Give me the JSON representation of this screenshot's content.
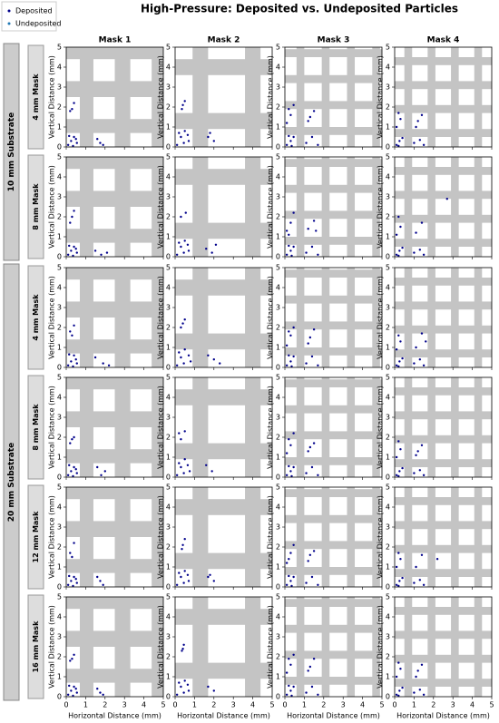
{
  "title": "High-Pressure: Deposited vs. Undeposited Particles",
  "legend": [
    {
      "name": "Deposited",
      "color": "#00008b"
    },
    {
      "name": "Undeposited",
      "color": "#1f77b4"
    }
  ],
  "columns": [
    "Mask 1",
    "Mask 2",
    "Mask 3",
    "Mask 4"
  ],
  "substrates": [
    {
      "label": "10 mm Substrate",
      "rows": [
        "4 mm Mask",
        "8 mm Mask"
      ]
    },
    {
      "label": "20 mm Substrate",
      "rows": [
        "4 mm Mask",
        "8 mm Mask",
        "12 mm Mask",
        "16 mm Mask"
      ]
    }
  ],
  "xlabel": "Horizontal Distance (mm)",
  "ylabel": "Vertical Distance (mm)",
  "xlim": [
    0,
    5
  ],
  "ylim": [
    0,
    5
  ],
  "xticks": [
    0,
    1,
    2,
    3,
    4,
    5
  ],
  "yticks": [
    0,
    1,
    2,
    3,
    4,
    5
  ],
  "masks": [
    {
      "bands": [
        [
          0.7,
          1.4
        ],
        [
          2.5,
          3.3
        ],
        [
          4.4,
          5
        ]
      ]
    },
    {
      "bands": [
        [
          0.9,
          1.7
        ],
        [
          3.6,
          4.4
        ]
      ]
    },
    {
      "bands": [
        [
          0.6,
          1.0
        ],
        [
          1.9,
          2.3
        ],
        [
          3.2,
          3.6
        ],
        [
          4.5,
          4.9
        ]
      ]
    },
    {
      "bands": [
        [
          0.5,
          0.9
        ],
        [
          1.7,
          2.1
        ],
        [
          2.9,
          3.3
        ],
        [
          4.1,
          4.5
        ]
      ]
    }
  ],
  "chart_data": [
    {
      "type": "scatter",
      "x": [
        0.1,
        0.25,
        0.4,
        0.55,
        0.15,
        0.35,
        0.5,
        0.2,
        0.4,
        0.3,
        1.6,
        1.9,
        1.75
      ],
      "y": [
        0.1,
        0.3,
        0.5,
        0.2,
        0.55,
        0.05,
        0.4,
        1.8,
        2.2,
        1.9,
        0.4,
        0.1,
        0.2
      ]
    },
    {
      "type": "scatter",
      "x": [
        0.1,
        0.3,
        0.5,
        0.7,
        0.2,
        0.45,
        0.65,
        0.35,
        0.5,
        0.4,
        1.7,
        2.0,
        1.8
      ],
      "y": [
        0.1,
        0.5,
        0.8,
        0.3,
        0.7,
        0.2,
        0.6,
        1.9,
        2.3,
        2.1,
        0.5,
        0.3,
        0.7
      ]
    },
    {
      "type": "scatter",
      "x": [
        0.1,
        0.3,
        0.45,
        0.2,
        0.35,
        0.1,
        0.3,
        0.45,
        0.2,
        1.1,
        1.4,
        1.7,
        1.2,
        1.5,
        1.3
      ],
      "y": [
        0.1,
        0.3,
        0.5,
        0.55,
        0.05,
        1.2,
        1.6,
        2.1,
        1.9,
        0.2,
        0.5,
        0.1,
        1.3,
        1.8,
        1.5
      ]
    },
    {
      "type": "scatter",
      "x": [
        0.1,
        0.25,
        0.4,
        0.2,
        0.1,
        0.3,
        0.2,
        1.0,
        1.3,
        1.5,
        1.1,
        1.4,
        1.2
      ],
      "y": [
        0.1,
        0.3,
        0.45,
        0.05,
        1.0,
        1.4,
        1.7,
        0.2,
        0.35,
        0.1,
        1.0,
        1.6,
        1.3
      ]
    },
    {
      "type": "scatter",
      "x": [
        0.1,
        0.25,
        0.4,
        0.55,
        0.15,
        0.35,
        0.5,
        0.2,
        0.4,
        0.3,
        1.5,
        1.8,
        2.1
      ],
      "y": [
        0.1,
        0.3,
        0.5,
        0.2,
        0.55,
        0.05,
        0.4,
        1.7,
        2.3,
        2.0,
        0.3,
        0.1,
        0.2
      ]
    },
    {
      "type": "scatter",
      "x": [
        0.1,
        0.3,
        0.5,
        0.7,
        0.2,
        0.45,
        0.65,
        0.3,
        0.55,
        1.6,
        1.9,
        2.1
      ],
      "y": [
        0.1,
        0.5,
        0.8,
        0.3,
        0.7,
        0.2,
        0.6,
        2.0,
        2.2,
        0.4,
        0.2,
        0.6
      ]
    },
    {
      "type": "scatter",
      "x": [
        0.1,
        0.3,
        0.45,
        0.2,
        0.35,
        0.1,
        0.3,
        0.45,
        0.2,
        1.1,
        1.4,
        1.7,
        1.2,
        1.5,
        1.6
      ],
      "y": [
        0.1,
        0.3,
        0.5,
        0.55,
        0.05,
        1.3,
        1.7,
        2.2,
        1.1,
        0.2,
        0.5,
        0.1,
        1.4,
        1.8,
        1.3
      ]
    },
    {
      "type": "scatter",
      "x": [
        0.1,
        0.25,
        0.4,
        0.2,
        0.1,
        0.3,
        0.2,
        1.0,
        1.3,
        1.5,
        1.1,
        1.4,
        2.7
      ],
      "y": [
        0.1,
        0.3,
        0.45,
        0.05,
        1.1,
        1.5,
        2.0,
        0.2,
        0.35,
        0.1,
        1.2,
        1.7,
        2.9
      ]
    },
    {
      "type": "scatter",
      "x": [
        0.1,
        0.25,
        0.4,
        0.55,
        0.15,
        0.35,
        0.5,
        0.2,
        0.4,
        0.3,
        1.5,
        1.9,
        2.2
      ],
      "y": [
        0.1,
        0.3,
        0.6,
        0.2,
        0.65,
        0.05,
        0.4,
        1.8,
        2.1,
        1.6,
        0.5,
        0.2,
        0.1
      ]
    },
    {
      "type": "scatter",
      "x": [
        0.1,
        0.3,
        0.5,
        0.8,
        0.2,
        0.45,
        0.7,
        0.3,
        0.5,
        0.4,
        1.7,
        2.0,
        2.3
      ],
      "y": [
        0.1,
        0.5,
        0.9,
        0.3,
        0.75,
        0.2,
        0.6,
        2.0,
        2.4,
        2.2,
        0.6,
        0.4,
        0.2
      ]
    },
    {
      "type": "scatter",
      "x": [
        0.1,
        0.3,
        0.45,
        0.2,
        0.35,
        0.1,
        0.3,
        0.45,
        0.2,
        1.1,
        1.4,
        1.7,
        1.2,
        1.5,
        1.3
      ],
      "y": [
        0.1,
        0.3,
        0.55,
        0.6,
        0.05,
        1.1,
        1.6,
        2.0,
        1.8,
        0.2,
        0.55,
        0.1,
        1.2,
        1.9,
        1.5
      ]
    },
    {
      "type": "scatter",
      "x": [
        0.1,
        0.25,
        0.4,
        0.2,
        0.1,
        0.3,
        0.2,
        1.0,
        1.3,
        1.5,
        1.1,
        1.4,
        1.6
      ],
      "y": [
        0.1,
        0.3,
        0.45,
        0.05,
        0.9,
        1.3,
        1.6,
        0.2,
        0.4,
        0.1,
        1.0,
        1.7,
        1.3
      ]
    },
    {
      "type": "scatter",
      "x": [
        0.1,
        0.25,
        0.4,
        0.55,
        0.15,
        0.35,
        0.5,
        0.2,
        0.4,
        0.3,
        1.6,
        1.8,
        2.0
      ],
      "y": [
        0.1,
        0.3,
        0.5,
        0.2,
        0.6,
        0.05,
        0.4,
        1.7,
        2.0,
        1.9,
        0.5,
        0.1,
        0.3
      ]
    },
    {
      "type": "scatter",
      "x": [
        0.1,
        0.3,
        0.5,
        0.75,
        0.2,
        0.45,
        0.65,
        0.3,
        0.5,
        0.2,
        1.6,
        1.9
      ],
      "y": [
        0.1,
        0.5,
        0.9,
        0.3,
        0.7,
        0.2,
        0.6,
        1.9,
        2.3,
        2.2,
        0.6,
        0.3
      ]
    },
    {
      "type": "scatter",
      "x": [
        0.1,
        0.3,
        0.45,
        0.2,
        0.35,
        0.1,
        0.3,
        0.45,
        0.2,
        1.1,
        1.4,
        1.7,
        1.2,
        1.5,
        1.3
      ],
      "y": [
        0.1,
        0.3,
        0.5,
        0.55,
        0.05,
        1.2,
        1.6,
        2.2,
        1.9,
        0.2,
        0.5,
        0.1,
        1.3,
        1.7,
        1.5
      ]
    },
    {
      "type": "scatter",
      "x": [
        0.1,
        0.25,
        0.4,
        0.2,
        0.1,
        0.3,
        0.2,
        1.0,
        1.3,
        1.5,
        1.1,
        1.4,
        1.2
      ],
      "y": [
        0.1,
        0.3,
        0.45,
        0.05,
        1.0,
        1.4,
        1.8,
        0.2,
        0.35,
        0.1,
        1.1,
        1.6,
        1.3
      ]
    },
    {
      "type": "scatter",
      "x": [
        0.1,
        0.25,
        0.4,
        0.55,
        0.15,
        0.35,
        0.5,
        0.2,
        0.4,
        0.3,
        1.6,
        1.9,
        1.75
      ],
      "y": [
        0.1,
        0.3,
        0.5,
        0.2,
        0.55,
        0.05,
        0.4,
        1.7,
        2.2,
        1.5,
        0.5,
        0.1,
        0.3
      ]
    },
    {
      "type": "scatter",
      "x": [
        0.1,
        0.3,
        0.5,
        0.7,
        0.2,
        0.45,
        0.65,
        0.35,
        0.5,
        0.4,
        1.7,
        2.0,
        1.8
      ],
      "y": [
        0.1,
        0.5,
        0.8,
        0.3,
        0.7,
        0.2,
        0.6,
        1.9,
        2.4,
        2.1,
        0.5,
        0.3,
        0.6
      ]
    },
    {
      "type": "scatter",
      "x": [
        0.1,
        0.3,
        0.45,
        0.2,
        0.35,
        0.1,
        0.3,
        0.45,
        0.2,
        1.1,
        1.4,
        1.7,
        1.2,
        1.5,
        1.3
      ],
      "y": [
        0.1,
        0.3,
        0.5,
        0.55,
        0.05,
        1.2,
        1.7,
        2.1,
        1.4,
        0.2,
        0.5,
        0.1,
        1.3,
        1.8,
        1.6
      ]
    },
    {
      "type": "scatter",
      "x": [
        0.1,
        0.25,
        0.4,
        0.2,
        0.1,
        0.3,
        0.2,
        1.0,
        1.3,
        1.5,
        1.1,
        1.4,
        2.2
      ],
      "y": [
        0.1,
        0.3,
        0.45,
        0.05,
        1.0,
        1.4,
        1.7,
        0.2,
        0.35,
        0.1,
        1.0,
        1.6,
        1.4
      ]
    },
    {
      "type": "scatter",
      "x": [
        0.1,
        0.25,
        0.4,
        0.55,
        0.15,
        0.35,
        0.5,
        0.2,
        0.4,
        0.3,
        1.6,
        1.9,
        1.75
      ],
      "y": [
        0.1,
        0.3,
        0.5,
        0.2,
        0.55,
        0.05,
        0.4,
        1.8,
        2.1,
        1.9,
        0.4,
        0.1,
        0.2
      ]
    },
    {
      "type": "scatter",
      "x": [
        0.1,
        0.3,
        0.5,
        0.7,
        0.2,
        0.45,
        0.65,
        0.35,
        0.45,
        0.4,
        1.7,
        2.0
      ],
      "y": [
        0.1,
        0.5,
        0.8,
        0.3,
        0.7,
        0.2,
        0.6,
        2.3,
        2.6,
        2.4,
        0.5,
        0.3
      ]
    },
    {
      "type": "scatter",
      "x": [
        0.1,
        0.3,
        0.45,
        0.2,
        0.35,
        0.1,
        0.3,
        0.45,
        0.2,
        1.1,
        1.4,
        1.7,
        1.2,
        1.5,
        1.3
      ],
      "y": [
        0.1,
        0.3,
        0.5,
        0.55,
        0.05,
        1.2,
        1.6,
        2.1,
        1.9,
        0.2,
        0.5,
        0.1,
        1.3,
        1.9,
        1.5
      ]
    },
    {
      "type": "scatter",
      "x": [
        0.1,
        0.25,
        0.4,
        0.2,
        0.1,
        0.3,
        0.2,
        1.0,
        1.3,
        1.5,
        1.1,
        1.4,
        1.2
      ],
      "y": [
        0.1,
        0.3,
        0.45,
        0.05,
        1.0,
        1.4,
        1.7,
        0.2,
        0.35,
        0.1,
        1.0,
        1.6,
        1.3
      ]
    }
  ]
}
